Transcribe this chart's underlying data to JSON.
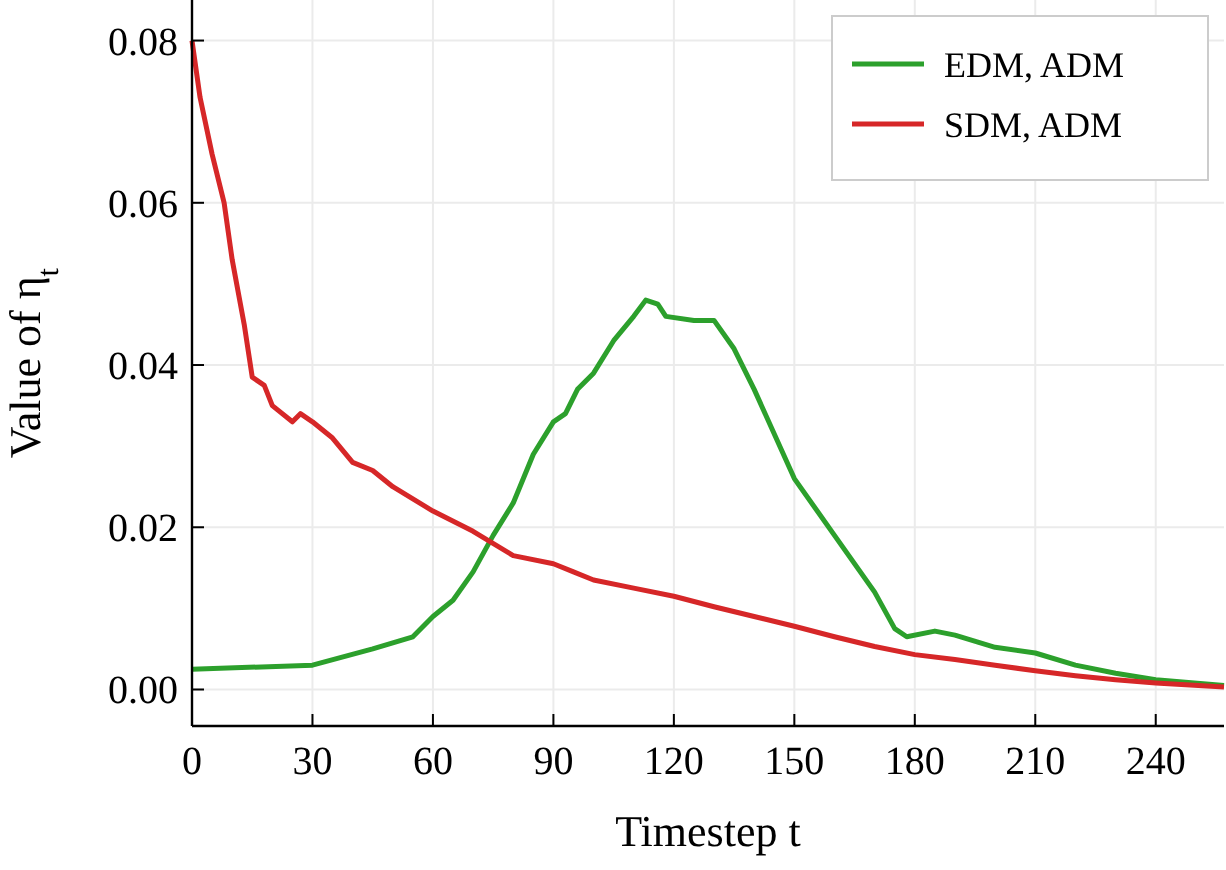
{
  "chart_data": {
    "type": "line",
    "xlabel": "Timestep t",
    "ylabel": "Value of η$_{t}$",
    "xlim": [
      0,
      257
    ],
    "ylim": [
      -0.0045,
      0.085
    ],
    "xticks": [
      0,
      30,
      60,
      90,
      120,
      150,
      180,
      210,
      240
    ],
    "yticks": [
      {
        "value": 0,
        "label": "0.00"
      },
      {
        "value": 0.02,
        "label": "0.02"
      },
      {
        "value": 0.04,
        "label": "0.04"
      },
      {
        "value": 0.06,
        "label": "0.06"
      },
      {
        "value": 0.08,
        "label": "0.08"
      }
    ],
    "grid": true,
    "legend": "top right",
    "marker": "none",
    "line_style": "solid",
    "series": [
      {
        "name": "EDM, ADM",
        "color": "#2ca02c",
        "x": [
          0,
          30,
          45,
          55,
          60,
          65,
          70,
          75,
          80,
          85,
          90,
          93,
          96,
          100,
          105,
          110,
          113,
          116,
          118,
          125,
          130,
          135,
          140,
          150,
          160,
          170,
          175,
          178,
          185,
          190,
          200,
          210,
          220,
          230,
          240,
          257
        ],
        "values": [
          0.0025,
          0.003,
          0.005,
          0.0065,
          0.009,
          0.011,
          0.0145,
          0.019,
          0.023,
          0.029,
          0.033,
          0.034,
          0.037,
          0.039,
          0.043,
          0.046,
          0.048,
          0.0475,
          0.046,
          0.0455,
          0.0455,
          0.042,
          0.037,
          0.026,
          0.019,
          0.012,
          0.0075,
          0.0065,
          0.0072,
          0.0067,
          0.0052,
          0.0045,
          0.003,
          0.002,
          0.0012,
          0.0005
        ]
      },
      {
        "name": "SDM, ADM",
        "color": "#d62728",
        "x": [
          0,
          2,
          5,
          8,
          10,
          13,
          15,
          18,
          20,
          25,
          27,
          30,
          35,
          40,
          45,
          50,
          55,
          60,
          70,
          80,
          90,
          95,
          100,
          110,
          120,
          130,
          140,
          150,
          160,
          170,
          180,
          190,
          200,
          210,
          220,
          230,
          240,
          257
        ],
        "values": [
          0.08,
          0.073,
          0.066,
          0.06,
          0.053,
          0.045,
          0.0385,
          0.0375,
          0.035,
          0.033,
          0.034,
          0.033,
          0.031,
          0.028,
          0.027,
          0.025,
          0.0235,
          0.022,
          0.0195,
          0.0165,
          0.0155,
          0.0145,
          0.0135,
          0.0125,
          0.0115,
          0.0102,
          0.009,
          0.0078,
          0.0065,
          0.0053,
          0.0043,
          0.0037,
          0.003,
          0.0023,
          0.0017,
          0.0012,
          0.0008,
          0.0003
        ]
      }
    ]
  }
}
